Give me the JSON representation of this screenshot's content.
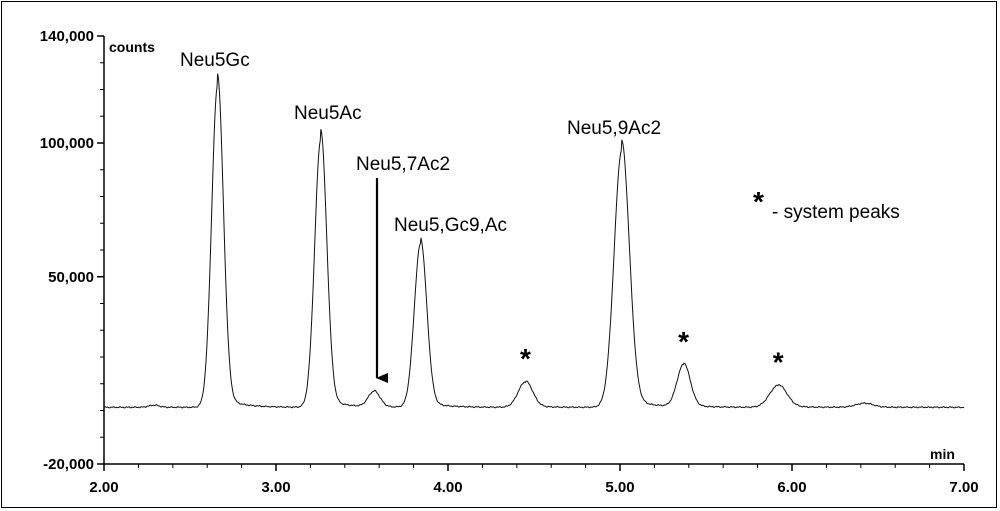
{
  "chart_data": {
    "type": "line",
    "x_unit": "min",
    "y_unit": "counts",
    "xlim": [
      2.0,
      7.0
    ],
    "ylim": [
      -20000,
      140000
    ],
    "x_ticks": [
      "2.00",
      "3.00",
      "4.00",
      "5.00",
      "6.00",
      "7.00"
    ],
    "x_tick_values": [
      2.0,
      3.0,
      4.0,
      5.0,
      6.0,
      7.0
    ],
    "y_ticks": [
      "-20,000",
      "50,000",
      "100,000",
      "140,000"
    ],
    "y_tick_values": [
      -20000,
      50000,
      100000,
      140000
    ],
    "baseline": 1200,
    "peaks": [
      {
        "x": 2.29,
        "height": 800,
        "width": 0.03
      },
      {
        "x": 2.66,
        "height": 120000,
        "width": 0.034
      },
      {
        "x": 3.26,
        "height": 100000,
        "width": 0.035
      },
      {
        "x": 3.57,
        "height": 5800,
        "width": 0.034
      },
      {
        "x": 3.84,
        "height": 61000,
        "width": 0.036
      },
      {
        "x": 4.45,
        "height": 9500,
        "width": 0.042
      },
      {
        "x": 5.01,
        "height": 96000,
        "width": 0.044
      },
      {
        "x": 5.37,
        "height": 15800,
        "width": 0.038
      },
      {
        "x": 5.92,
        "height": 8200,
        "width": 0.05
      },
      {
        "x": 6.42,
        "height": 1500,
        "width": 0.05
      }
    ],
    "annotations": [
      {
        "text": "Neu5Gc"
      },
      {
        "text": "Neu5Ac"
      },
      {
        "text": "Neu5,7Ac2"
      },
      {
        "text": "Neu5,Gc9,Ac"
      },
      {
        "text": "Neu5,9Ac2"
      },
      {
        "text": "- system peaks"
      }
    ],
    "system_peak_marker": "*",
    "system_peaks_x": [
      4.45,
      5.37,
      5.92
    ],
    "arrow_target_x": 3.57,
    "grid": false
  }
}
